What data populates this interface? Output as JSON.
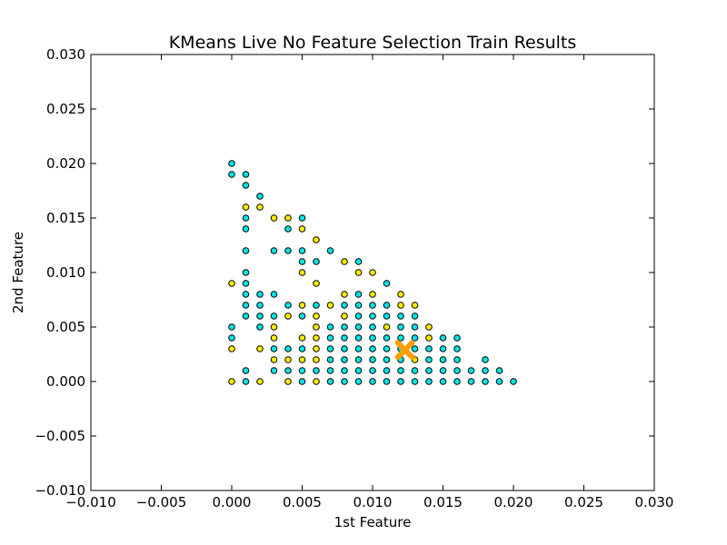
{
  "chart_data": {
    "type": "scatter",
    "title": "KMeans Live No Feature Selection Train Results",
    "xlabel": "1st Feature",
    "ylabel": "2nd Feature",
    "xlim": [
      -0.01,
      0.03
    ],
    "ylim": [
      -0.01,
      0.03
    ],
    "xticks": [
      "−0.010",
      "−0.005",
      "0.000",
      "0.005",
      "0.010",
      "0.015",
      "0.020",
      "0.025",
      "0.030"
    ],
    "yticks": [
      "−0.010",
      "−0.005",
      "0.000",
      "0.005",
      "0.010",
      "0.015",
      "0.020",
      "0.025",
      "0.030"
    ],
    "xtick_values": [
      -0.01,
      -0.005,
      0.0,
      0.005,
      0.01,
      0.015,
      0.02,
      0.025,
      0.03
    ],
    "ytick_values": [
      -0.01,
      -0.005,
      0.0,
      0.005,
      0.01,
      0.015,
      0.02,
      0.025,
      0.03
    ],
    "grid": false,
    "colors": {
      "cluster_a": "#00e5e5",
      "cluster_b": "#ffee00",
      "centroid": "#ff9f00",
      "edge": "#000000"
    },
    "series": [
      {
        "cluster": "cyan",
        "points": [
          [
            0.0,
            0.02
          ],
          [
            0.0,
            0.019
          ],
          [
            0.0,
            0.005
          ],
          [
            0.0,
            0.004
          ],
          [
            0.001,
            0.019
          ],
          [
            0.001,
            0.018
          ],
          [
            0.001,
            0.015
          ],
          [
            0.001,
            0.014
          ],
          [
            0.001,
            0.012
          ],
          [
            0.001,
            0.01
          ],
          [
            0.001,
            0.009
          ],
          [
            0.001,
            0.008
          ],
          [
            0.001,
            0.007
          ],
          [
            0.001,
            0.006
          ],
          [
            0.001,
            0.001
          ],
          [
            0.001,
            0.0
          ],
          [
            0.002,
            0.017
          ],
          [
            0.002,
            0.008
          ],
          [
            0.002,
            0.007
          ],
          [
            0.002,
            0.006
          ],
          [
            0.002,
            0.005
          ],
          [
            0.003,
            0.012
          ],
          [
            0.003,
            0.008
          ],
          [
            0.003,
            0.006
          ],
          [
            0.003,
            0.003
          ],
          [
            0.003,
            0.001
          ],
          [
            0.004,
            0.014
          ],
          [
            0.004,
            0.012
          ],
          [
            0.004,
            0.007
          ],
          [
            0.004,
            0.003
          ],
          [
            0.004,
            0.001
          ],
          [
            0.005,
            0.015
          ],
          [
            0.005,
            0.012
          ],
          [
            0.005,
            0.011
          ],
          [
            0.005,
            0.006
          ],
          [
            0.005,
            0.003
          ],
          [
            0.005,
            0.001
          ],
          [
            0.005,
            0.0
          ],
          [
            0.006,
            0.011
          ],
          [
            0.006,
            0.007
          ],
          [
            0.006,
            0.001
          ],
          [
            0.007,
            0.012
          ],
          [
            0.007,
            0.005
          ],
          [
            0.007,
            0.004
          ],
          [
            0.007,
            0.003
          ],
          [
            0.007,
            0.002
          ],
          [
            0.007,
            0.001
          ],
          [
            0.007,
            0.0
          ],
          [
            0.008,
            0.007
          ],
          [
            0.008,
            0.005
          ],
          [
            0.008,
            0.004
          ],
          [
            0.008,
            0.003
          ],
          [
            0.008,
            0.002
          ],
          [
            0.008,
            0.001
          ],
          [
            0.008,
            0.0
          ],
          [
            0.009,
            0.011
          ],
          [
            0.009,
            0.008
          ],
          [
            0.009,
            0.007
          ],
          [
            0.009,
            0.006
          ],
          [
            0.009,
            0.005
          ],
          [
            0.009,
            0.004
          ],
          [
            0.009,
            0.003
          ],
          [
            0.009,
            0.002
          ],
          [
            0.009,
            0.001
          ],
          [
            0.009,
            0.0
          ],
          [
            0.01,
            0.007
          ],
          [
            0.01,
            0.006
          ],
          [
            0.01,
            0.005
          ],
          [
            0.01,
            0.004
          ],
          [
            0.01,
            0.003
          ],
          [
            0.01,
            0.002
          ],
          [
            0.01,
            0.001
          ],
          [
            0.01,
            0.0
          ],
          [
            0.011,
            0.009
          ],
          [
            0.011,
            0.007
          ],
          [
            0.011,
            0.006
          ],
          [
            0.011,
            0.004
          ],
          [
            0.011,
            0.003
          ],
          [
            0.011,
            0.002
          ],
          [
            0.011,
            0.001
          ],
          [
            0.011,
            0.0
          ],
          [
            0.012,
            0.006
          ],
          [
            0.012,
            0.005
          ],
          [
            0.012,
            0.004
          ],
          [
            0.012,
            0.003
          ],
          [
            0.012,
            0.002
          ],
          [
            0.012,
            0.001
          ],
          [
            0.012,
            0.0
          ],
          [
            0.013,
            0.006
          ],
          [
            0.013,
            0.005
          ],
          [
            0.013,
            0.004
          ],
          [
            0.013,
            0.003
          ],
          [
            0.013,
            0.001
          ],
          [
            0.013,
            0.0
          ],
          [
            0.014,
            0.003
          ],
          [
            0.014,
            0.002
          ],
          [
            0.014,
            0.001
          ],
          [
            0.014,
            0.0
          ],
          [
            0.015,
            0.004
          ],
          [
            0.015,
            0.003
          ],
          [
            0.015,
            0.002
          ],
          [
            0.015,
            0.001
          ],
          [
            0.015,
            0.0
          ],
          [
            0.016,
            0.004
          ],
          [
            0.016,
            0.003
          ],
          [
            0.016,
            0.002
          ],
          [
            0.016,
            0.001
          ],
          [
            0.016,
            0.0
          ],
          [
            0.017,
            0.001
          ],
          [
            0.017,
            0.0
          ],
          [
            0.018,
            0.002
          ],
          [
            0.018,
            0.001
          ],
          [
            0.018,
            0.0
          ],
          [
            0.019,
            0.001
          ],
          [
            0.019,
            0.0
          ],
          [
            0.02,
            0.0
          ]
        ]
      },
      {
        "cluster": "yellow",
        "points": [
          [
            0.0,
            0.009
          ],
          [
            0.0,
            0.003
          ],
          [
            0.0,
            0.0
          ],
          [
            0.001,
            0.016
          ],
          [
            0.002,
            0.016
          ],
          [
            0.002,
            0.003
          ],
          [
            0.002,
            0.0
          ],
          [
            0.003,
            0.015
          ],
          [
            0.003,
            0.005
          ],
          [
            0.003,
            0.004
          ],
          [
            0.003,
            0.002
          ],
          [
            0.004,
            0.015
          ],
          [
            0.004,
            0.006
          ],
          [
            0.004,
            0.002
          ],
          [
            0.004,
            0.0
          ],
          [
            0.005,
            0.014
          ],
          [
            0.005,
            0.01
          ],
          [
            0.005,
            0.007
          ],
          [
            0.005,
            0.004
          ],
          [
            0.005,
            0.002
          ],
          [
            0.006,
            0.013
          ],
          [
            0.006,
            0.009
          ],
          [
            0.006,
            0.006
          ],
          [
            0.006,
            0.005
          ],
          [
            0.006,
            0.004
          ],
          [
            0.006,
            0.003
          ],
          [
            0.006,
            0.002
          ],
          [
            0.006,
            0.0
          ],
          [
            0.007,
            0.007
          ],
          [
            0.008,
            0.011
          ],
          [
            0.008,
            0.008
          ],
          [
            0.008,
            0.006
          ],
          [
            0.009,
            0.01
          ],
          [
            0.01,
            0.01
          ],
          [
            0.01,
            0.008
          ],
          [
            0.011,
            0.005
          ],
          [
            0.012,
            0.008
          ],
          [
            0.012,
            0.007
          ],
          [
            0.013,
            0.007
          ],
          [
            0.013,
            0.002
          ],
          [
            0.014,
            0.005
          ],
          [
            0.014,
            0.004
          ]
        ]
      }
    ],
    "centroids": [
      [
        0.0123,
        0.0029
      ]
    ]
  }
}
